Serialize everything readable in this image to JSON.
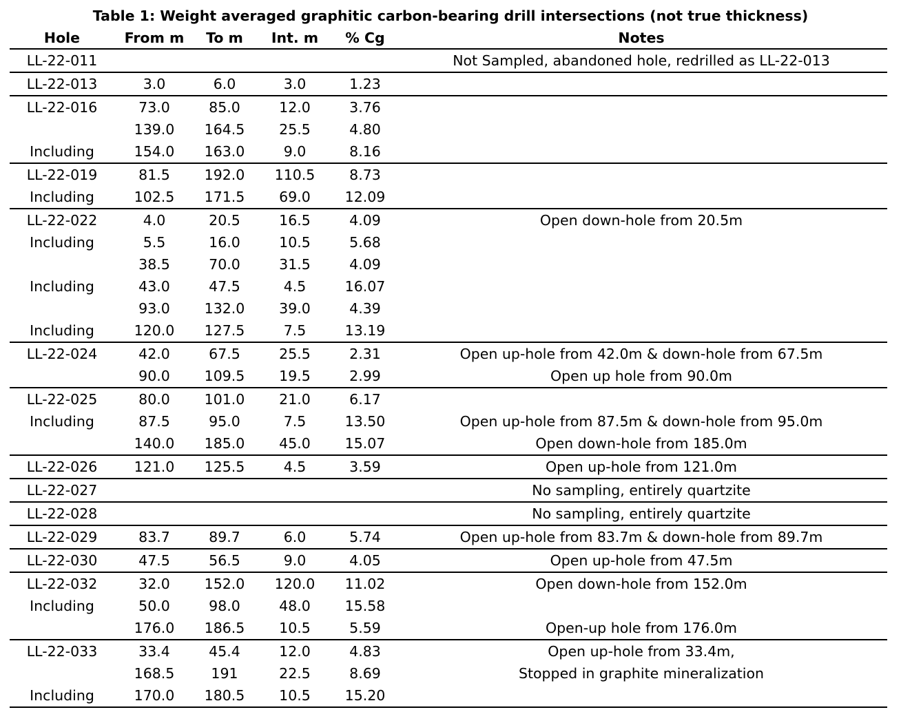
{
  "title": "Table 1: Weight averaged graphitic carbon-bearing drill intersections (not true thickness)",
  "headers": [
    "Hole",
    "From m",
    "To m",
    "Int. m",
    "% Cg",
    "Notes"
  ],
  "groups": [
    [
      [
        "LL-22-011",
        "",
        "",
        "",
        "",
        "Not Sampled, abandoned hole, redrilled as LL-22-013"
      ]
    ],
    [
      [
        "LL-22-013",
        "3.0",
        "6.0",
        "3.0",
        "1.23",
        ""
      ]
    ],
    [
      [
        "LL-22-016",
        "73.0",
        "85.0",
        "12.0",
        "3.76",
        ""
      ],
      [
        "",
        "139.0",
        "164.5",
        "25.5",
        "4.80",
        ""
      ],
      [
        "Including",
        "154.0",
        "163.0",
        "9.0",
        "8.16",
        ""
      ]
    ],
    [
      [
        "LL-22-019",
        "81.5",
        "192.0",
        "110.5",
        "8.73",
        ""
      ],
      [
        "Including",
        "102.5",
        "171.5",
        "69.0",
        "12.09",
        ""
      ]
    ],
    [
      [
        "LL-22-022",
        "4.0",
        "20.5",
        "16.5",
        "4.09",
        "Open down-hole from 20.5m"
      ],
      [
        "Including",
        "5.5",
        "16.0",
        "10.5",
        "5.68",
        ""
      ],
      [
        "",
        "38.5",
        "70.0",
        "31.5",
        "4.09",
        ""
      ],
      [
        "Including",
        "43.0",
        "47.5",
        "4.5",
        "16.07",
        ""
      ],
      [
        "",
        "93.0",
        "132.0",
        "39.0",
        "4.39",
        ""
      ],
      [
        "Including",
        "120.0",
        "127.5",
        "7.5",
        "13.19",
        ""
      ]
    ],
    [
      [
        "LL-22-024",
        "42.0",
        "67.5",
        "25.5",
        "2.31",
        "Open up-hole from 42.0m & down-hole from 67.5m"
      ],
      [
        "",
        "90.0",
        "109.5",
        "19.5",
        "2.99",
        "Open up hole from 90.0m"
      ]
    ],
    [
      [
        "LL-22-025",
        "80.0",
        "101.0",
        "21.0",
        "6.17",
        ""
      ],
      [
        "Including",
        "87.5",
        "95.0",
        "7.5",
        "13.50",
        "Open up-hole from 87.5m & down-hole from 95.0m"
      ],
      [
        "",
        "140.0",
        "185.0",
        "45.0",
        "15.07",
        "Open down-hole from 185.0m"
      ]
    ],
    [
      [
        "LL-22-026",
        "121.0",
        "125.5",
        "4.5",
        "3.59",
        "Open up-hole from 121.0m"
      ]
    ],
    [
      [
        "LL-22-027",
        "",
        "",
        "",
        "",
        "No sampling, entirely quartzite"
      ]
    ],
    [
      [
        "LL-22-028",
        "",
        "",
        "",
        "",
        "No sampling, entirely quartzite"
      ]
    ],
    [
      [
        "LL-22-029",
        "83.7",
        "89.7",
        "6.0",
        "5.74",
        "Open up-hole from 83.7m & down-hole from 89.7m"
      ]
    ],
    [
      [
        "LL-22-030",
        "47.5",
        "56.5",
        "9.0",
        "4.05",
        "Open up-hole from 47.5m"
      ]
    ],
    [
      [
        "LL-22-032",
        "32.0",
        "152.0",
        "120.0",
        "11.02",
        "Open down-hole from 152.0m"
      ],
      [
        "Including",
        "50.0",
        "98.0",
        "48.0",
        "15.58",
        ""
      ],
      [
        "",
        "176.0",
        "186.5",
        "10.5",
        "5.59",
        "Open-up hole from 176.0m"
      ]
    ],
    [
      [
        "LL-22-033",
        "33.4",
        "45.4",
        "12.0",
        "4.83",
        "Open up-hole from 33.4m,"
      ],
      [
        "",
        "168.5",
        "191",
        "22.5",
        "8.69",
        "Stopped in graphite mineralization"
      ],
      [
        "Including",
        "170.0",
        "180.5",
        "10.5",
        "15.20",
        ""
      ]
    ]
  ]
}
